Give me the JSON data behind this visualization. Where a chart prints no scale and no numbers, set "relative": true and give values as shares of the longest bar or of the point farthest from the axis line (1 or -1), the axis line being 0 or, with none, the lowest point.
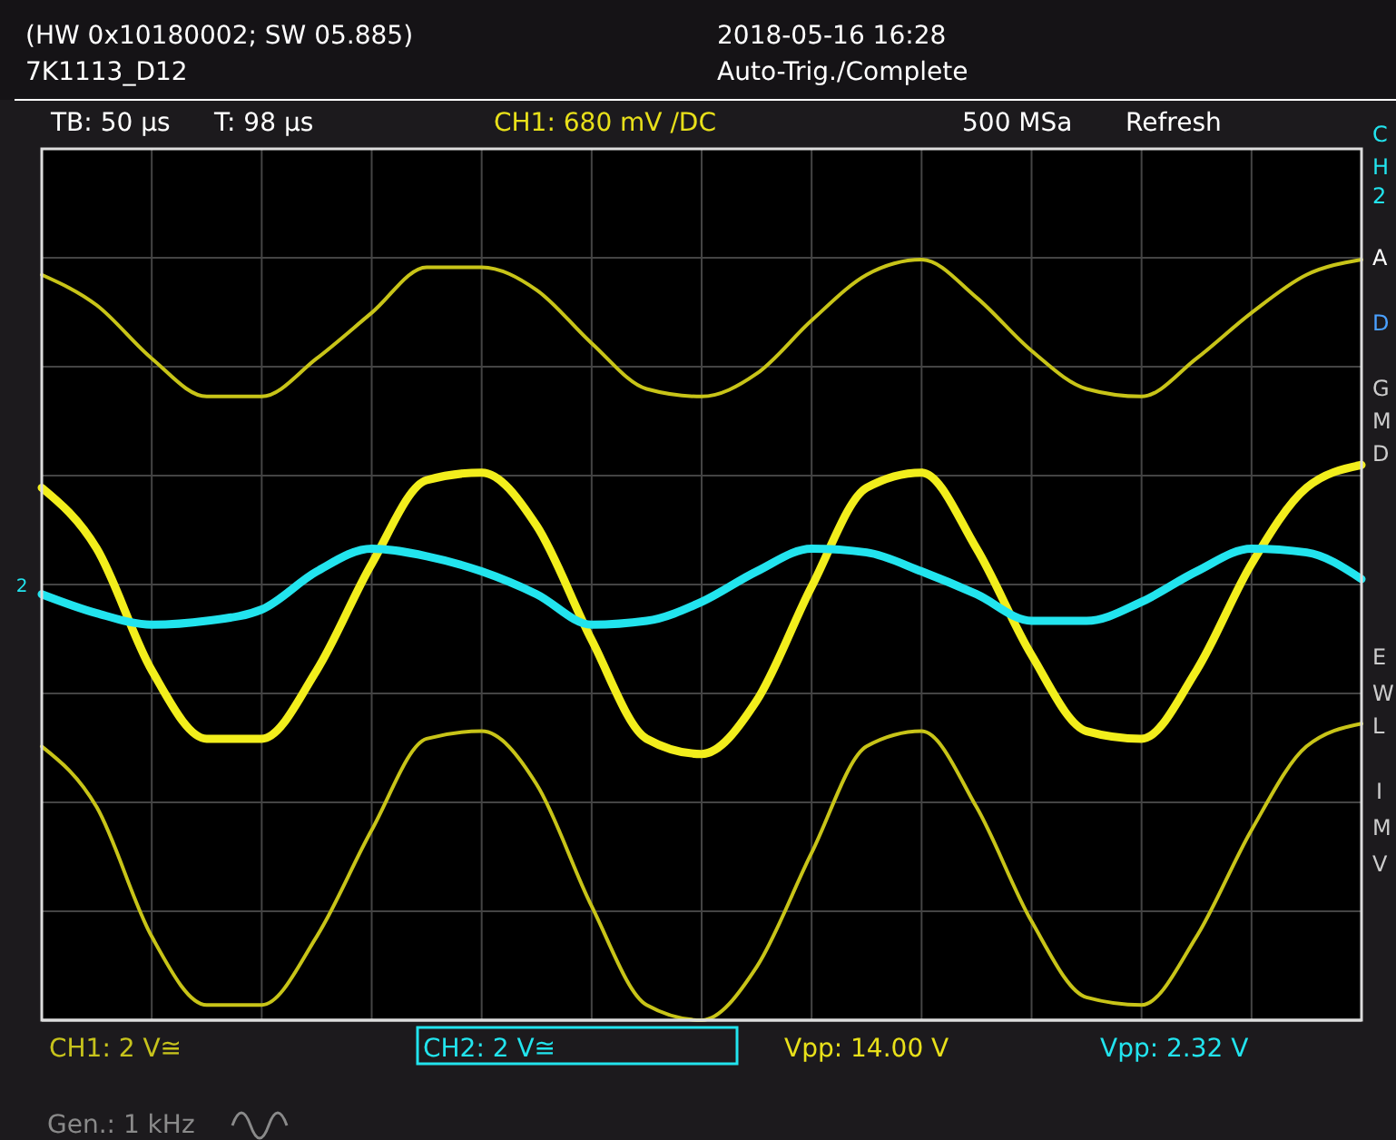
{
  "chart_data": {
    "type": "line",
    "relative": true,
    "title": "(HW 0x10180002; SW 05.885)",
    "subtitle": "7K1113_D12",
    "categories": [
      null,
      null,
      null,
      null,
      null,
      null,
      null,
      null,
      null,
      null,
      null,
      null,
      null,
      null,
      null,
      null,
      null,
      null,
      null,
      null,
      null,
      null,
      null,
      null,
      null
    ],
    "series": [
      {
        "color": "#c8c418",
        "values": [
          0.98,
          0.94,
          0.87,
          0.82,
          0.82,
          0.87,
          0.93,
          0.99,
          0.99,
          0.96,
          0.89,
          0.83,
          0.82,
          0.85,
          0.92,
          0.98,
          1.0,
          0.95,
          0.88,
          0.83,
          0.82,
          0.87,
          0.93,
          0.98,
          1.0
        ]
      },
      {
        "color": "#c8c418",
        "values": [
          0.36,
          0.28,
          0.11,
          0.02,
          0.02,
          0.11,
          0.25,
          0.37,
          0.38,
          0.31,
          0.15,
          0.02,
          0,
          0.07,
          0.22,
          0.36,
          0.38,
          0.28,
          0.13,
          0.03,
          0.02,
          0.11,
          0.25,
          0.36,
          0.39
        ]
      },
      {
        "name": "CH1: 2 V≅",
        "color": "#f2ee1c",
        "values": [
          0.7,
          0.62,
          0.46,
          0.37,
          0.37,
          0.46,
          0.6,
          0.71,
          0.72,
          0.65,
          0.5,
          0.37,
          0.35,
          0.42,
          0.57,
          0.7,
          0.72,
          0.62,
          0.48,
          0.38,
          0.37,
          0.46,
          0.6,
          0.7,
          0.73
        ]
      },
      {
        "name": "CH2: 2 V≅",
        "color": "#22e4ee",
        "values": [
          0.56,
          0.535,
          0.52,
          0.525,
          0.54,
          0.59,
          0.62,
          0.61,
          0.59,
          0.56,
          0.52,
          0.525,
          0.55,
          0.59,
          0.62,
          0.615,
          0.59,
          0.56,
          0.525,
          0.525,
          0.55,
          0.59,
          0.62,
          0.615,
          0.58
        ]
      }
    ],
    "grid": true,
    "legend": "bottom",
    "marker": "none",
    "line_style": "solid",
    "annotations": [
      "2018-05-16 16:28",
      "Auto-Trig./Complete",
      "TB: 50 µs",
      "T: 98 µs",
      "CH1: 680 mV /DC",
      "500 MSa",
      "Refresh",
      "Vpp: 14.00 V",
      "Vpp: 2.32 V",
      "Gen.: 1 kHz",
      "2",
      "C",
      "H",
      "2",
      "A",
      "D",
      "G",
      "M",
      "D",
      "E",
      "W",
      "L",
      "I",
      "M",
      "V"
    ]
  }
}
